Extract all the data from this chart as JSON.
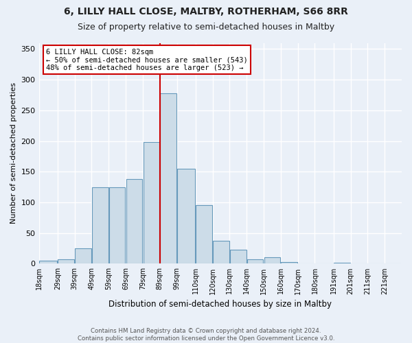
{
  "title1": "6, LILLY HALL CLOSE, MALTBY, ROTHERHAM, S66 8RR",
  "title2": "Size of property relative to semi-detached houses in Maltby",
  "xlabel": "Distribution of semi-detached houses by size in Maltby",
  "ylabel": "Number of semi-detached properties",
  "footnote": "Contains HM Land Registry data © Crown copyright and database right 2024.\nContains public sector information licensed under the Open Government Licence v3.0.",
  "bar_labels": [
    "18sqm",
    "29sqm",
    "39sqm",
    "49sqm",
    "59sqm",
    "69sqm",
    "79sqm",
    "89sqm",
    "99sqm",
    "110sqm",
    "120sqm",
    "130sqm",
    "140sqm",
    "150sqm",
    "160sqm",
    "170sqm",
    "180sqm",
    "191sqm",
    "201sqm",
    "211sqm",
    "221sqm"
  ],
  "bar_values": [
    5,
    7,
    25,
    125,
    125,
    138,
    198,
    278,
    155,
    95,
    37,
    23,
    7,
    10,
    3,
    0,
    0,
    2,
    0,
    0,
    0
  ],
  "bar_color": "#ccdce8",
  "bar_edge_color": "#6699bb",
  "annotation_title": "6 LILLY HALL CLOSE: 82sqm",
  "annotation_line1": "← 50% of semi-detached houses are smaller (543)",
  "annotation_line2": "48% of semi-detached houses are larger (523) →",
  "property_line_bin": 7,
  "ylim": [
    0,
    360
  ],
  "yticks": [
    0,
    50,
    100,
    150,
    200,
    250,
    300,
    350
  ],
  "bg_color": "#eaf0f8",
  "grid_color": "#ffffff",
  "title1_fontsize": 10,
  "title2_fontsize": 9,
  "annotation_box_color": "#ffffff",
  "annotation_border_color": "#cc0000",
  "vline_color": "#cc0000",
  "bin_edges": [
    13,
    24,
    34,
    44,
    54,
    64,
    74,
    84,
    94,
    105,
    115,
    125,
    135,
    145,
    155,
    165,
    175,
    186,
    196,
    206,
    216,
    226
  ]
}
